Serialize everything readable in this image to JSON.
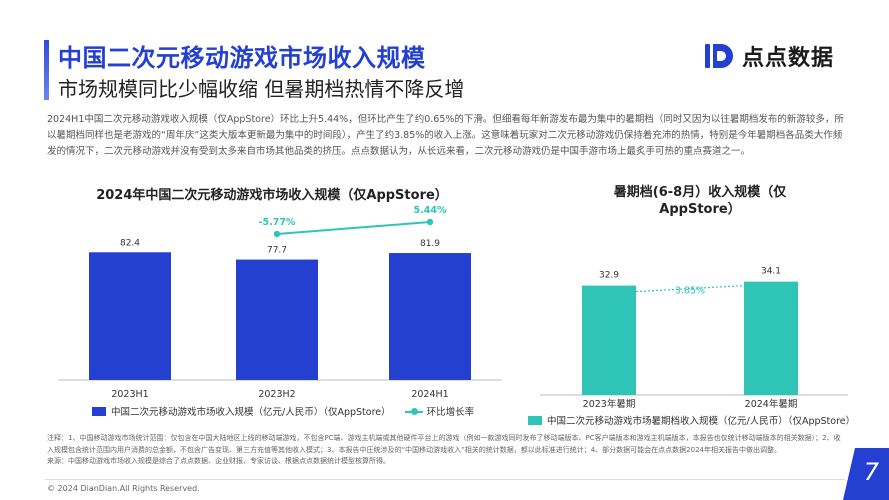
{
  "header": {
    "title": "中国二次元移动游戏市场收入规模",
    "subtitle": "市场规模同比少幅收缩 但暑期档热情不降反增",
    "logo_text": "点点数据",
    "logo_icon": "dd-logo-icon"
  },
  "intro": "2024H1中国二次元移动游戏收入规模（仅AppStore）环比上升5.44%，但环比产生了约0.65%的下滑。但细看每年新游发布最为集中的暑期档（同时又因为以往暑期档发布的新游较多，所以暑期档同样也是老游戏的“周年庆”这类大版本更新最为集中的时间段），产生了约3.85%的收入上涨。这意味着玩家对二次元移动游戏仍保持着充沛的热情，特别是今年暑期档各品类大作频发的情况下，二次元移动游戏并没有受到太多来自市场其他品类的挤压。点点数据认为，从长远来看，二次元移动游戏仍是中国手游市场上最炙手可热的重点赛道之一。",
  "chart_data": [
    {
      "type": "bar",
      "title": "2024年中国二次元移动游戏市场收入规模（仅AppStore）",
      "categories": [
        "2023H1",
        "2023H2",
        "2024H1"
      ],
      "series": [
        {
          "name": "中国二次元移动游戏市场收入规模（亿元/人民币）（仅AppStore）",
          "values": [
            82.4,
            77.7,
            81.9
          ],
          "color": "#2340d0"
        },
        {
          "name": "环比增长率",
          "type": "line",
          "values": [
            null,
            -5.77,
            5.44
          ],
          "labels": [
            "",
            "-5.77%",
            "5.44%"
          ],
          "color": "#2ec4b6"
        }
      ],
      "ylim": [
        0,
        100
      ],
      "grid": false,
      "legend": "bottom"
    },
    {
      "type": "bar",
      "title": "暑期档(6-8月）收入规模（仅AppStore）",
      "categories": [
        "2023年暑期",
        "2024年暑期"
      ],
      "series": [
        {
          "name": "中国二次元移动游戏市场暑期档收入规模（亿元/人民币）（仅AppStore）",
          "values": [
            32.9,
            34.1
          ],
          "color": "#2ec4b6"
        }
      ],
      "annotation": "3.85%",
      "ylim": [
        0,
        40
      ],
      "grid": false,
      "legend": "bottom"
    }
  ],
  "notes": {
    "line1": "注释：1、中国移动游戏市场统计范围：仅包含在中国大陆地区上线的移动端游戏，不包含PC端、游戏主机端或其他硬件平台上的游戏（例如一款游戏同时发布了移动端版本、PC客户端版本和游戏主机端版本，本报告也仅统计移动端版本的相关数据）；2、收入规模包含统计范围内用户消费的总金额，不包含广告变现、第三方充值等其他收入模式；3、本报告中圧统涉及的“中国移动游戏收入”相关的统计数据，都以此标准进行统计；4、部分数据可能会在点点数据2024年相关报告中做出调整。",
    "line2": "来源：中国移动游戏市场收入规模是综合了点点数据、企业财报、专家访谈、根据点点数据统计模型核算所得。"
  },
  "footer": {
    "copyright": "© 2024 DianDian.All Rights Reserved.",
    "page": "7"
  }
}
